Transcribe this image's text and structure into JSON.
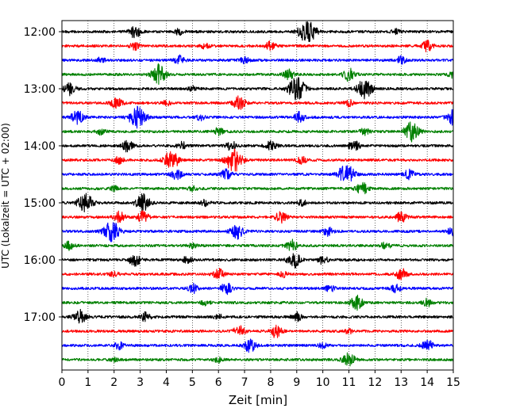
{
  "chart_data": {
    "type": "line",
    "title": "",
    "xlabel": "Zeit  [min]",
    "ylabel": "UTC (Lokalzeit = UTC + 02:00)",
    "xlim": [
      0,
      15
    ],
    "x_ticks": [
      "0",
      "1",
      "2",
      "3",
      "4",
      "5",
      "6",
      "7",
      "8",
      "9",
      "10",
      "11",
      "12",
      "13",
      "14",
      "15"
    ],
    "y_ticks": [
      {
        "label": "12:00",
        "trace": 0
      },
      {
        "label": "13:00",
        "trace": 4
      },
      {
        "label": "14:00",
        "trace": 8
      },
      {
        "label": "15:00",
        "trace": 12
      },
      {
        "label": "16:00",
        "trace": 16
      },
      {
        "label": "17:00",
        "trace": 20
      }
    ],
    "grid": "vertical dotted",
    "trace_interval_minutes": 15,
    "trace_colors": [
      "#000000",
      "#ff0000",
      "#0000ff",
      "#008000"
    ],
    "traces": [
      {
        "start": "12:00",
        "events": [
          [
            2.8,
            0.5
          ],
          [
            9.4,
            1.0
          ],
          [
            4.5,
            0.25
          ],
          [
            12.8,
            0.2
          ]
        ]
      },
      {
        "start": "12:15",
        "events": [
          [
            2.8,
            0.3
          ],
          [
            8.0,
            0.35
          ],
          [
            14.0,
            0.45
          ],
          [
            5.5,
            0.2
          ]
        ]
      },
      {
        "start": "12:30",
        "events": [
          [
            4.5,
            0.35
          ],
          [
            7.0,
            0.25
          ],
          [
            13.0,
            0.3
          ],
          [
            1.5,
            0.2
          ]
        ]
      },
      {
        "start": "12:45",
        "events": [
          [
            3.7,
            0.8
          ],
          [
            8.7,
            0.4
          ],
          [
            11.0,
            0.5
          ],
          [
            15.0,
            0.3
          ]
        ]
      },
      {
        "start": "13:00",
        "events": [
          [
            0.3,
            0.5
          ],
          [
            9.0,
            1.0
          ],
          [
            11.6,
            0.85
          ],
          [
            5.0,
            0.2
          ]
        ]
      },
      {
        "start": "13:15",
        "events": [
          [
            2.1,
            0.45
          ],
          [
            6.8,
            0.55
          ],
          [
            4.0,
            0.2
          ],
          [
            11.0,
            0.25
          ]
        ]
      },
      {
        "start": "13:30",
        "events": [
          [
            0.6,
            0.6
          ],
          [
            2.9,
            0.95
          ],
          [
            9.1,
            0.4
          ],
          [
            15.0,
            0.6
          ],
          [
            5.3,
            0.25
          ]
        ]
      },
      {
        "start": "13:45",
        "events": [
          [
            13.4,
            0.8
          ],
          [
            6.0,
            0.3
          ],
          [
            1.5,
            0.25
          ],
          [
            11.6,
            0.3
          ]
        ]
      },
      {
        "start": "14:00",
        "events": [
          [
            2.5,
            0.45
          ],
          [
            6.5,
            0.4
          ],
          [
            8.0,
            0.45
          ],
          [
            11.2,
            0.45
          ],
          [
            4.6,
            0.3
          ]
        ]
      },
      {
        "start": "14:15",
        "events": [
          [
            4.2,
            0.8
          ],
          [
            6.6,
            1.0
          ],
          [
            2.2,
            0.3
          ],
          [
            9.2,
            0.3
          ]
        ]
      },
      {
        "start": "14:30",
        "events": [
          [
            4.4,
            0.4
          ],
          [
            6.3,
            0.4
          ],
          [
            10.9,
            0.9
          ],
          [
            13.3,
            0.4
          ]
        ]
      },
      {
        "start": "14:45",
        "events": [
          [
            11.5,
            0.5
          ],
          [
            5.0,
            0.2
          ],
          [
            2.0,
            0.2
          ]
        ]
      },
      {
        "start": "15:00",
        "events": [
          [
            0.9,
            0.8
          ],
          [
            3.1,
            0.7
          ],
          [
            5.5,
            0.25
          ],
          [
            9.2,
            0.25
          ]
        ]
      },
      {
        "start": "15:15",
        "events": [
          [
            2.2,
            0.45
          ],
          [
            3.1,
            0.45
          ],
          [
            8.4,
            0.45
          ],
          [
            13.0,
            0.4
          ]
        ]
      },
      {
        "start": "15:30",
        "events": [
          [
            1.9,
            0.9
          ],
          [
            6.7,
            0.6
          ],
          [
            10.2,
            0.35
          ],
          [
            15.0,
            0.4
          ]
        ]
      },
      {
        "start": "15:45",
        "events": [
          [
            0.3,
            0.4
          ],
          [
            8.8,
            0.45
          ],
          [
            12.4,
            0.3
          ],
          [
            5.0,
            0.2
          ]
        ]
      },
      {
        "start": "16:00",
        "events": [
          [
            2.8,
            0.5
          ],
          [
            4.8,
            0.3
          ],
          [
            8.9,
            0.6
          ],
          [
            10.0,
            0.35
          ]
        ]
      },
      {
        "start": "16:15",
        "events": [
          [
            6.0,
            0.45
          ],
          [
            13.0,
            0.45
          ],
          [
            8.5,
            0.25
          ],
          [
            2.0,
            0.2
          ]
        ]
      },
      {
        "start": "16:30",
        "events": [
          [
            5.0,
            0.4
          ],
          [
            6.3,
            0.45
          ],
          [
            10.3,
            0.3
          ],
          [
            12.8,
            0.3
          ]
        ]
      },
      {
        "start": "16:45",
        "events": [
          [
            11.3,
            0.55
          ],
          [
            5.5,
            0.2
          ],
          [
            14.0,
            0.3
          ]
        ]
      },
      {
        "start": "17:00",
        "events": [
          [
            0.7,
            0.55
          ],
          [
            3.2,
            0.35
          ],
          [
            9.0,
            0.35
          ],
          [
            6.0,
            0.2
          ]
        ]
      },
      {
        "start": "17:15",
        "events": [
          [
            6.8,
            0.45
          ],
          [
            8.2,
            0.5
          ],
          [
            11.0,
            0.2
          ]
        ]
      },
      {
        "start": "17:30",
        "events": [
          [
            2.2,
            0.3
          ],
          [
            7.2,
            0.55
          ],
          [
            14.0,
            0.45
          ],
          [
            10.0,
            0.2
          ]
        ]
      },
      {
        "start": "17:45",
        "events": [
          [
            11.0,
            0.55
          ],
          [
            6.0,
            0.2
          ],
          [
            2.0,
            0.15
          ]
        ]
      }
    ]
  }
}
